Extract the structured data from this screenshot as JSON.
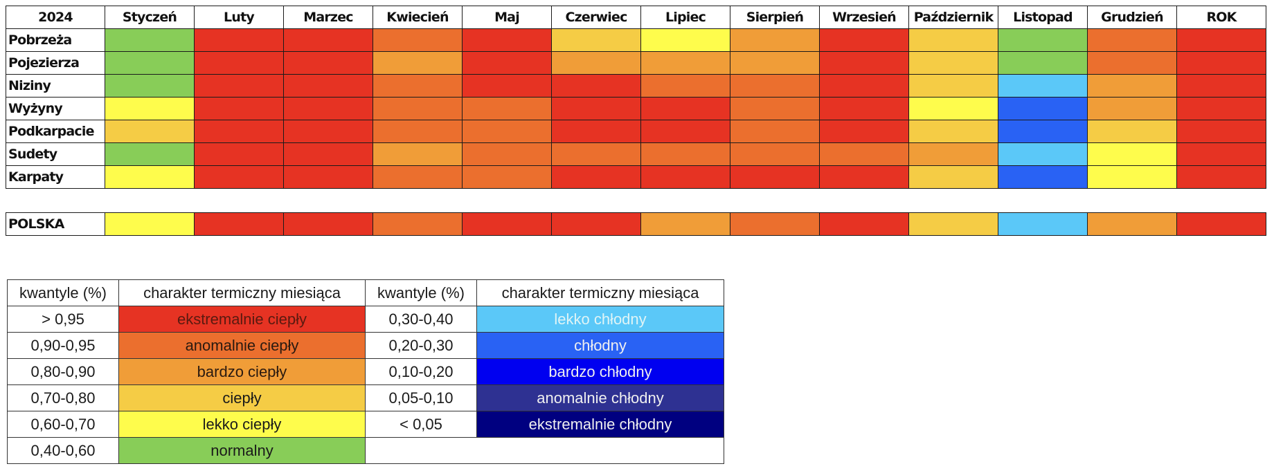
{
  "classes": {
    "ec": {
      "label": "ekstremalnie ciepły",
      "quantile": "> 0,95",
      "color": "#E63323",
      "text_color": "#5a1a10"
    },
    "ac": {
      "label": "anomalnie ciepły",
      "quantile": "0,90-0,95",
      "color": "#EB6F2E",
      "text_color": "#2a1a10"
    },
    "bc": {
      "label": "bardzo ciepły",
      "quantile": "0,80-0,90",
      "color": "#F09D38",
      "text_color": "#2a1a10"
    },
    "c": {
      "label": "ciepły",
      "quantile": "0,70-0,80",
      "color": "#F5CC45",
      "text_color": "#1a1a1a"
    },
    "lc": {
      "label": "lekko ciepły",
      "quantile": "0,60-0,70",
      "color": "#FEFC4C",
      "text_color": "#1a1a1a"
    },
    "n": {
      "label": "normalny",
      "quantile": "0,40-0,60",
      "color": "#88CD58",
      "text_color": "#1a1a1a"
    },
    "lch": {
      "label": "lekko chłodny",
      "quantile": "0,30-0,40",
      "color": "#5BC8F8",
      "text_color": "#dff4f6"
    },
    "ch": {
      "label": "chłodny",
      "quantile": "0,20-0,30",
      "color": "#2962F4",
      "text_color": "#f0f0f0"
    },
    "bch": {
      "label": "bardzo chłodny",
      "quantile": "0,10-0,20",
      "color": "#0000F0",
      "text_color": "#f0f0f0"
    },
    "ach": {
      "label": "anomalnie chłodny",
      "quantile": "0,05-0,10",
      "color": "#2E3192",
      "text_color": "#f0f0f0"
    },
    "ech": {
      "label": "ekstremalnie chłodny",
      "quantile": "< 0,05",
      "color": "#000080",
      "text_color": "#f0f0f0"
    }
  },
  "grid": {
    "year_label": "2024",
    "columns": [
      "Styczeń",
      "Luty",
      "Marzec",
      "Kwiecień",
      "Maj",
      "Czerwiec",
      "Lipiec",
      "Sierpień",
      "Wrzesień",
      "Październik",
      "Listopad",
      "Grudzień",
      "ROK"
    ],
    "regions": [
      {
        "name": "Pobrzeża",
        "values": [
          "n",
          "ec",
          "ec",
          "ac",
          "ec",
          "c",
          "lc",
          "bc",
          "ec",
          "c",
          "n",
          "ac",
          "ec"
        ]
      },
      {
        "name": "Pojezierza",
        "values": [
          "n",
          "ec",
          "ec",
          "bc",
          "ec",
          "bc",
          "bc",
          "bc",
          "ec",
          "c",
          "n",
          "ac",
          "ec"
        ]
      },
      {
        "name": "Niziny",
        "values": [
          "n",
          "ec",
          "ec",
          "ac",
          "ec",
          "ec",
          "ac",
          "ac",
          "ec",
          "c",
          "lch",
          "bc",
          "ec"
        ]
      },
      {
        "name": "Wyżyny",
        "values": [
          "lc",
          "ec",
          "ec",
          "ac",
          "ac",
          "ec",
          "ec",
          "ac",
          "ec",
          "lc",
          "ch",
          "bc",
          "ec"
        ]
      },
      {
        "name": "Podkarpacie",
        "values": [
          "c",
          "ec",
          "ec",
          "ac",
          "ac",
          "ec",
          "ec",
          "ac",
          "ec",
          "c",
          "ch",
          "c",
          "ec"
        ]
      },
      {
        "name": "Sudety",
        "values": [
          "n",
          "ec",
          "ec",
          "bc",
          "ac",
          "ac",
          "ac",
          "ac",
          "ac",
          "bc",
          "lch",
          "lc",
          "ec"
        ]
      },
      {
        "name": "Karpaty",
        "values": [
          "lc",
          "ec",
          "ec",
          "ac",
          "ac",
          "ec",
          "ec",
          "ec",
          "ec",
          "c",
          "ch",
          "lc",
          "ec"
        ]
      }
    ],
    "national": {
      "name": "POLSKA",
      "values": [
        "lc",
        "ec",
        "ec",
        "ac",
        "ec",
        "ec",
        "bc",
        "ac",
        "ec",
        "c",
        "lch",
        "bc",
        "ec"
      ]
    }
  },
  "legend": {
    "header_quantiles": "kwantyle (%)",
    "header_character": "charakter termiczny miesiąca",
    "warm": [
      "ec",
      "ac",
      "bc",
      "c",
      "lc",
      "n"
    ],
    "cool": [
      "lch",
      "ch",
      "bch",
      "ach",
      "ech"
    ]
  }
}
